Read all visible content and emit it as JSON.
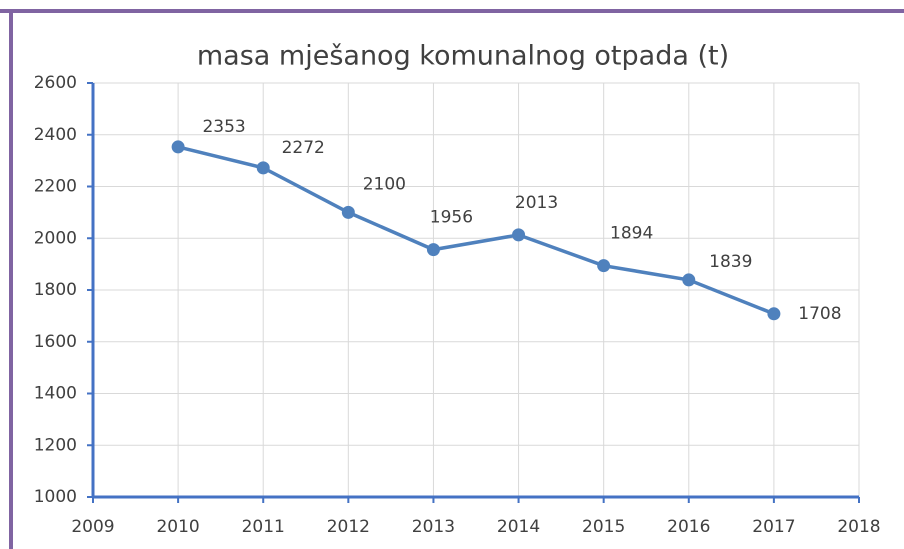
{
  "chart_data": {
    "type": "line",
    "title": "masa mješanog komunalnog otpada (t)",
    "x": [
      2010,
      2011,
      2012,
      2013,
      2014,
      2015,
      2016,
      2017
    ],
    "series": [
      {
        "name": "masa mješanog komunalnog otpada (t)",
        "color": "#4f81bd",
        "values": [
          2353,
          2272,
          2100,
          1956,
          2013,
          1894,
          1839,
          1708
        ]
      }
    ],
    "xlim": [
      2009,
      2018
    ],
    "xticks": [
      2009,
      2010,
      2011,
      2012,
      2013,
      2014,
      2015,
      2016,
      2017,
      2018
    ],
    "ylim": [
      1000,
      2600
    ],
    "yticks": [
      1000,
      1200,
      1400,
      1600,
      1800,
      2000,
      2200,
      2400,
      2600
    ],
    "grid": true
  }
}
